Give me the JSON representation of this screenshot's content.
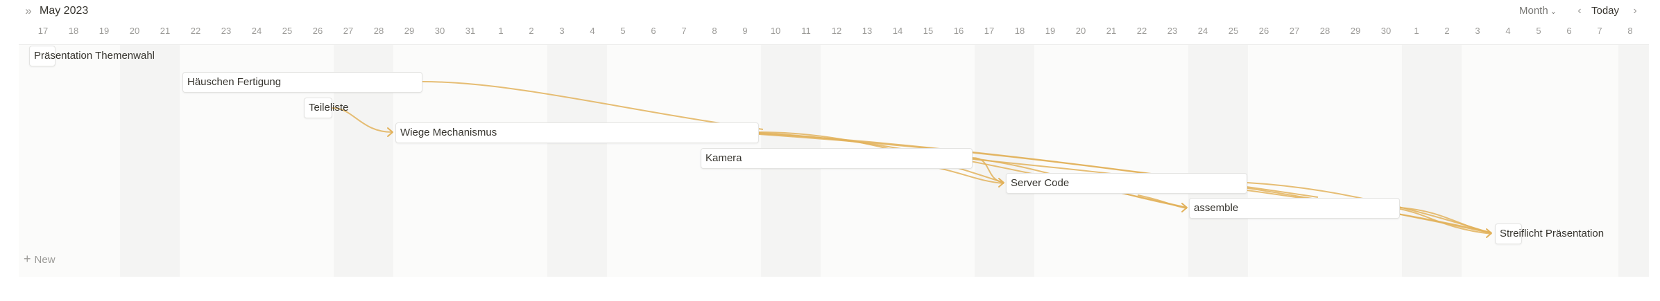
{
  "toolbar": {
    "month_title": "May 2023",
    "view_mode": "Month",
    "today_label": "Today",
    "collapse_icon": "double-chevron-right-icon",
    "prev_icon": "chevron-left-icon",
    "next_icon": "chevron-right-icon"
  },
  "timeline": {
    "days": [
      "17",
      "18",
      "19",
      "20",
      "21",
      "22",
      "23",
      "24",
      "25",
      "26",
      "27",
      "28",
      "29",
      "30",
      "31",
      "1",
      "2",
      "3",
      "4",
      "5",
      "6",
      "7",
      "8",
      "9",
      "10",
      "11",
      "12",
      "13",
      "14",
      "15",
      "16",
      "17",
      "18",
      "19",
      "20",
      "21",
      "22",
      "23",
      "24",
      "25",
      "26",
      "27",
      "28",
      "29",
      "30",
      "1",
      "2",
      "3",
      "4",
      "5",
      "6",
      "7",
      "8"
    ]
  },
  "tasks": [
    {
      "name": "Präsentation Themenwahl"
    },
    {
      "name": "Häuschen Fertigung"
    },
    {
      "name": "Teileliste"
    },
    {
      "name": "Wiege Mechanismus"
    },
    {
      "name": "Kamera"
    },
    {
      "name": "Server Code"
    },
    {
      "name": "assemble"
    },
    {
      "name": "Streiflicht Präsentation"
    }
  ],
  "new_label": "New",
  "colors": {
    "dependency_line": "#e2b15a",
    "weekend_band": "#f4f4f3"
  }
}
